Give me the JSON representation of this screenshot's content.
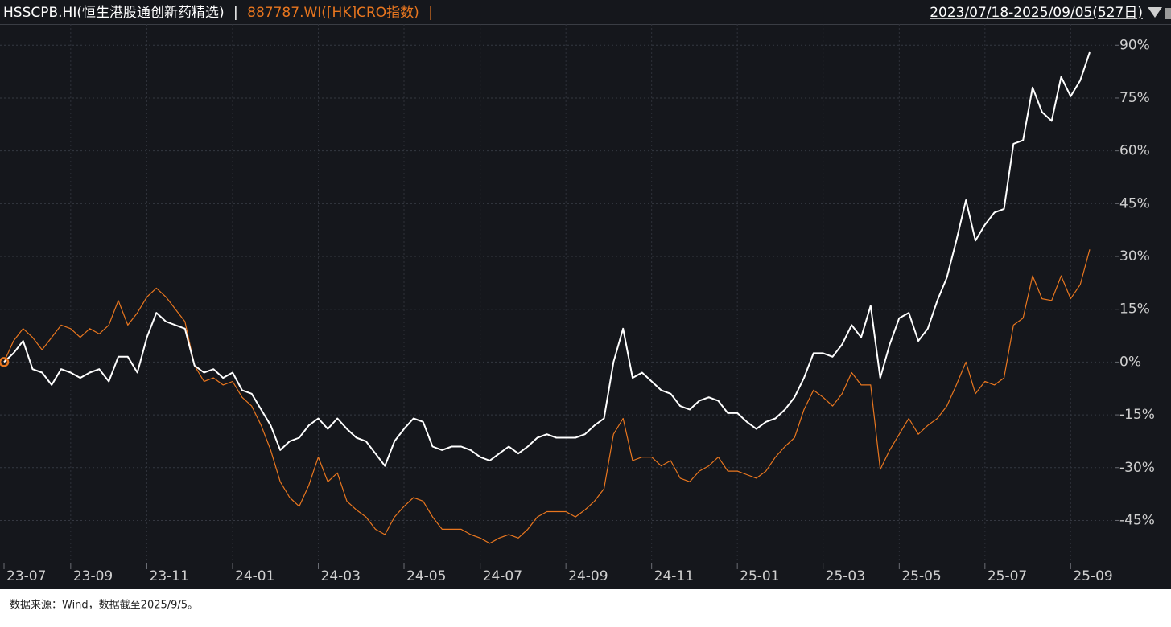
{
  "chart_data": {
    "type": "line",
    "separator": "|",
    "date_range": "2023/07/18-2025/09/05(527日)",
    "source": "数据来源：Wind，数据截至2025/9/5。",
    "categories": [
      "23-07",
      null,
      null,
      null,
      null,
      null,
      null,
      "23-09",
      null,
      null,
      null,
      null,
      null,
      null,
      null,
      "23-11",
      null,
      null,
      null,
      null,
      null,
      null,
      null,
      null,
      "24-01",
      null,
      null,
      null,
      null,
      null,
      null,
      null,
      null,
      "24-03",
      null,
      null,
      null,
      null,
      null,
      null,
      null,
      null,
      "24-05",
      null,
      null,
      null,
      null,
      null,
      null,
      null,
      "24-07",
      null,
      null,
      null,
      null,
      null,
      null,
      null,
      null,
      "24-09",
      null,
      null,
      null,
      null,
      null,
      null,
      null,
      null,
      "24-11",
      null,
      null,
      null,
      null,
      null,
      null,
      null,
      null,
      "25-01",
      null,
      null,
      null,
      null,
      null,
      null,
      null,
      null,
      "25-03",
      null,
      null,
      null,
      null,
      null,
      null,
      null,
      "25-05",
      null,
      null,
      null,
      null,
      null,
      null,
      null,
      null,
      "25-07",
      null,
      null,
      null,
      null,
      null,
      null,
      null,
      null,
      "25-09",
      null,
      null
    ],
    "series": [
      {
        "name": "HSSCPB.HI(恒生港股通创新药精选)",
        "color": "#ffffff",
        "values": [
          0,
          2.5,
          6,
          -2,
          -3,
          -6.5,
          -2,
          -3,
          -4.5,
          -3,
          -2,
          -5.5,
          1.5,
          1.5,
          -3,
          7,
          14,
          11.5,
          10.5,
          9.5,
          -1,
          -3,
          -2,
          -4.5,
          -3,
          -8,
          -9,
          -13.5,
          -18,
          -25,
          -22.5,
          -21.5,
          -18,
          -16,
          -19,
          -16,
          -19,
          -21.5,
          -22.5,
          -26,
          -29.5,
          -22.5,
          -19,
          -16,
          -17,
          -24,
          -25,
          -24,
          -24,
          -25,
          -27,
          -28,
          -26,
          -24,
          -26,
          -24,
          -21.5,
          -20.5,
          -21.5,
          -21.5,
          -21.5,
          -20.5,
          -18,
          -16,
          0,
          9.5,
          -4.5,
          -3,
          -5.5,
          -8,
          -9,
          -12.5,
          -13.5,
          -11,
          -10,
          -11,
          -14.5,
          -14.5,
          -17,
          -19,
          -17,
          -16,
          -13.5,
          -10,
          -4.5,
          2.5,
          2.5,
          1.5,
          5,
          10.5,
          7,
          16,
          -4.5,
          5,
          12.5,
          14,
          6,
          9.5,
          17.5,
          24,
          34.5,
          46,
          34.5,
          39,
          42.5,
          43.5,
          62,
          63,
          78,
          71,
          68.5,
          81,
          75.5,
          80,
          88
        ]
      },
      {
        "name": "887787.WI([HK]CRO指数)",
        "color": "#e8761f",
        "values": [
          0,
          6,
          9.5,
          7,
          3.5,
          7,
          10.5,
          9.5,
          7,
          9.5,
          8,
          10.5,
          17.5,
          10.5,
          14,
          18.5,
          21,
          18.5,
          15,
          11.5,
          -1,
          -5.5,
          -4.5,
          -6.5,
          -5.5,
          -10,
          -12.5,
          -18,
          -25,
          -34,
          -38.5,
          -41,
          -35,
          -27,
          -34,
          -31.5,
          -39.5,
          -42,
          -44,
          -47.5,
          -49,
          -44,
          -41,
          -38.5,
          -39.5,
          -44,
          -47.5,
          -47.5,
          -47.5,
          -49,
          -50,
          -51.5,
          -50,
          -49,
          -50,
          -47.5,
          -44,
          -42.5,
          -42.5,
          -42.5,
          -44,
          -42,
          -39.5,
          -36,
          -20.5,
          -16,
          -28,
          -27,
          -27,
          -29.5,
          -28,
          -33,
          -34,
          -31,
          -29.5,
          -27,
          -31,
          -31,
          -32,
          -33,
          -31,
          -27,
          -24,
          -21.5,
          -13.5,
          -8,
          -10,
          -12.5,
          -9,
          -3,
          -6.5,
          -6.5,
          -30.5,
          -25,
          -20.5,
          -16,
          -20.5,
          -18,
          -16,
          -12.5,
          -6.5,
          0,
          -9,
          -5.5,
          -6.5,
          -4.5,
          10.5,
          12.5,
          24.5,
          18,
          17.5,
          24.5,
          18,
          22,
          32
        ]
      }
    ],
    "ylim": [
      -57,
      96
    ],
    "yticks": [
      {
        "value": 90,
        "label": "90%"
      },
      {
        "value": 75,
        "label": "75%"
      },
      {
        "value": 60,
        "label": "60%"
      },
      {
        "value": 45,
        "label": "45%"
      },
      {
        "value": 30,
        "label": "30%"
      },
      {
        "value": 15,
        "label": "15%"
      },
      {
        "value": 0,
        "label": "0%"
      },
      {
        "value": -15,
        "label": "-15%"
      },
      {
        "value": -30,
        "label": "-30%"
      },
      {
        "value": -45,
        "label": "-45%"
      }
    ],
    "grid": true
  }
}
